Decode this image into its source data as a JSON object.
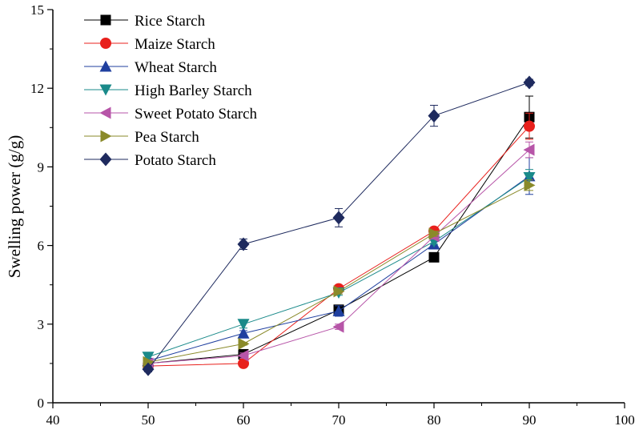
{
  "chart_data": {
    "type": "line",
    "title": "",
    "xlabel": "",
    "ylabel": "Swelling power (g/g)",
    "xlim": [
      40,
      100
    ],
    "ylim": [
      0,
      15
    ],
    "xticks": [
      40,
      50,
      60,
      70,
      80,
      90,
      100
    ],
    "yticks": [
      0,
      3,
      6,
      9,
      12,
      15
    ],
    "grid": false,
    "legend_position": "top-left",
    "x": [
      50,
      60,
      70,
      80,
      90
    ],
    "series": [
      {
        "name": "Rice Starch",
        "color": "#000000",
        "marker": "square",
        "values": [
          1.5,
          1.85,
          3.55,
          5.55,
          10.9
        ],
        "errors": [
          0.1,
          0.1,
          0.15,
          0.15,
          0.8
        ]
      },
      {
        "name": "Maize Starch",
        "color": "#e8201c",
        "marker": "circle",
        "values": [
          1.4,
          1.5,
          4.35,
          6.55,
          10.55
        ],
        "errors": [
          0.05,
          0.05,
          0.1,
          0.1,
          0.5
        ]
      },
      {
        "name": "Wheat Starch",
        "color": "#1f3f9f",
        "marker": "triangle-up",
        "values": [
          1.6,
          2.65,
          3.5,
          6.05,
          8.65
        ],
        "errors": [
          0.1,
          0.1,
          0.2,
          0.15,
          0.7
        ]
      },
      {
        "name": "High Barley Starch",
        "color": "#1a8a8a",
        "marker": "triangle-down",
        "values": [
          1.75,
          3.0,
          4.2,
          6.15,
          8.6
        ],
        "errors": [
          0.15,
          0.15,
          0.1,
          0.1,
          0.3
        ]
      },
      {
        "name": "Sweet Potato Starch",
        "color": "#b755a8",
        "marker": "triangle-left",
        "values": [
          1.5,
          1.8,
          2.9,
          6.35,
          9.65
        ],
        "errors": [
          0.05,
          0.1,
          0.1,
          0.1,
          0.3
        ]
      },
      {
        "name": "Pea Starch",
        "color": "#8a8a2a",
        "marker": "triangle-right",
        "values": [
          1.55,
          2.25,
          4.25,
          6.45,
          8.3
        ],
        "errors": [
          0.05,
          0.05,
          0.1,
          0.1,
          0.2
        ]
      },
      {
        "name": "Potato Starch",
        "color": "#1e2a5e",
        "marker": "diamond",
        "values": [
          1.28,
          6.05,
          7.06,
          10.95,
          12.22
        ],
        "errors": [
          0.1,
          0.2,
          0.35,
          0.4,
          0.12
        ]
      }
    ]
  }
}
